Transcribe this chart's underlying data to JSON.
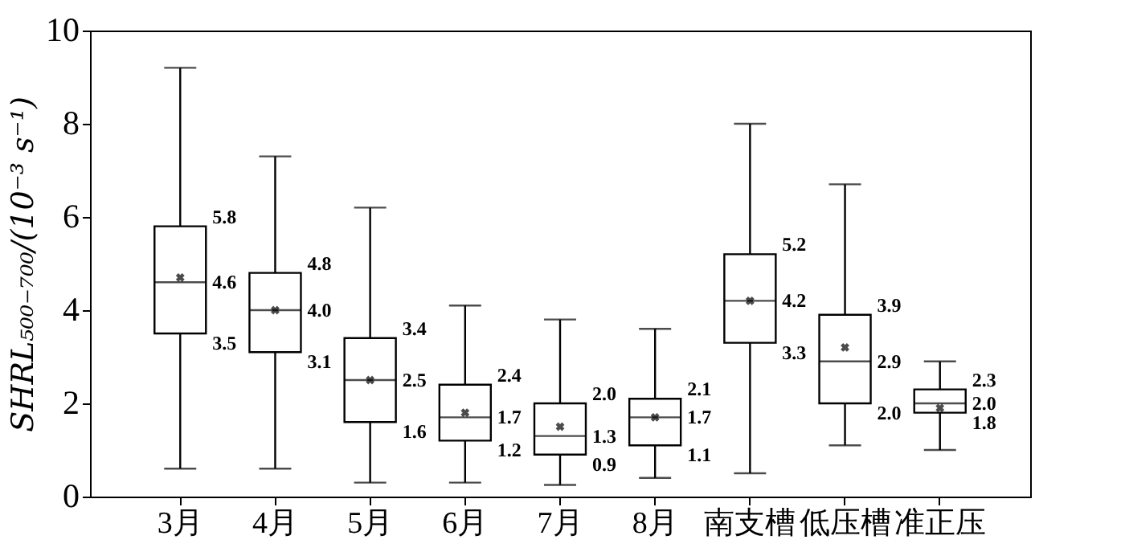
{
  "chart_data": {
    "type": "box",
    "categories": [
      "3月",
      "4月",
      "5月",
      "6月",
      "7月",
      "8月",
      "南支槽",
      "低压槽",
      "准正压"
    ],
    "boxes": [
      {
        "low": 0.6,
        "q1": 3.5,
        "median": 4.6,
        "q3": 5.8,
        "high": 9.2,
        "mean": 4.7
      },
      {
        "low": 0.6,
        "q1": 3.1,
        "median": 4.0,
        "q3": 4.8,
        "high": 7.3,
        "mean": 4.0
      },
      {
        "low": 0.3,
        "q1": 1.6,
        "median": 2.5,
        "q3": 3.4,
        "high": 6.2,
        "mean": 2.5
      },
      {
        "low": 0.3,
        "q1": 1.2,
        "median": 1.7,
        "q3": 2.4,
        "high": 4.1,
        "mean": 1.8
      },
      {
        "low": 0.25,
        "q1": 0.9,
        "median": 1.3,
        "q3": 2.0,
        "high": 3.8,
        "mean": 1.5
      },
      {
        "low": 0.4,
        "q1": 1.1,
        "median": 1.7,
        "q3": 2.1,
        "high": 3.6,
        "mean": 1.7
      },
      {
        "low": 0.5,
        "q1": 3.3,
        "median": 4.2,
        "q3": 5.2,
        "high": 8.0,
        "mean": 4.2
      },
      {
        "low": 1.1,
        "q1": 2.0,
        "median": 2.9,
        "q3": 3.9,
        "high": 6.7,
        "mean": 3.2
      },
      {
        "low": 1.0,
        "q1": 1.8,
        "median": 2.0,
        "q3": 2.3,
        "high": 2.9,
        "mean": 1.9
      }
    ],
    "color": "#000000",
    "ylabel": "SHRL₅₀₀₋₇₀₀/(10⁻³ s⁻¹)",
    "ylim": [
      0,
      10
    ],
    "yticks": [
      0,
      2,
      4,
      6,
      8,
      10
    ],
    "grid": false,
    "marker": "cross",
    "annotations": [
      {
        "text": "5.8",
        "x": "3月",
        "y": 5.8
      },
      {
        "text": "4.6",
        "x": "3月",
        "y": 4.6
      },
      {
        "text": "3.5",
        "x": "3月",
        "y": 3.5
      },
      {
        "text": "4.8",
        "x": "4月",
        "y": 4.8
      },
      {
        "text": "4.0",
        "x": "4月",
        "y": 4.0
      },
      {
        "text": "3.1",
        "x": "4月",
        "y": 3.1
      },
      {
        "text": "3.4",
        "x": "5月",
        "y": 3.4
      },
      {
        "text": "2.5",
        "x": "5月",
        "y": 2.5
      },
      {
        "text": "1.6",
        "x": "5月",
        "y": 1.6
      },
      {
        "text": "2.4",
        "x": "6月",
        "y": 2.4
      },
      {
        "text": "1.7",
        "x": "6月",
        "y": 1.7
      },
      {
        "text": "1.2",
        "x": "6月",
        "y": 1.2
      },
      {
        "text": "2.0",
        "x": "7月",
        "y": 2.0
      },
      {
        "text": "1.3",
        "x": "7月",
        "y": 1.3
      },
      {
        "text": "0.9",
        "x": "7月",
        "y": 0.9
      },
      {
        "text": "2.1",
        "x": "8月",
        "y": 2.1
      },
      {
        "text": "1.7",
        "x": "8月",
        "y": 1.7
      },
      {
        "text": "1.1",
        "x": "8月",
        "y": 1.1
      },
      {
        "text": "5.2",
        "x": "南支槽",
        "y": 5.2
      },
      {
        "text": "4.2",
        "x": "南支槽",
        "y": 4.2
      },
      {
        "text": "3.3",
        "x": "南支槽",
        "y": 3.3
      },
      {
        "text": "3.9",
        "x": "低压槽",
        "y": 3.9
      },
      {
        "text": "2.9",
        "x": "低压槽",
        "y": 2.9
      },
      {
        "text": "2.0",
        "x": "低压槽",
        "y": 2.0
      },
      {
        "text": "2.3",
        "x": "准正压",
        "y": 2.3
      },
      {
        "text": "2.0",
        "x": "准正压",
        "y": 2.0
      },
      {
        "text": "1.8",
        "x": "准正压",
        "y": 1.8
      }
    ]
  }
}
